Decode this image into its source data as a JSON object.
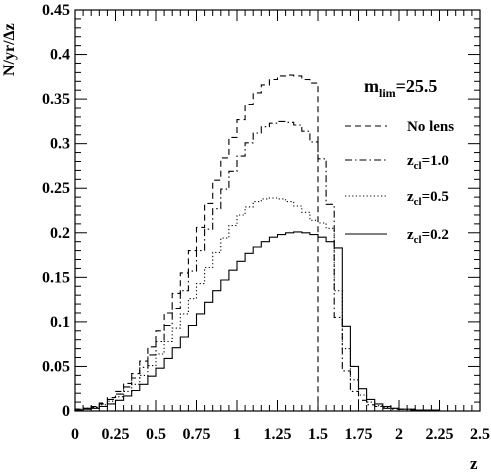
{
  "chart_data": {
    "type": "line",
    "title": "",
    "xlabel": "z",
    "ylabel": "N/yr/Δz",
    "xlim": [
      0,
      2.5
    ],
    "ylim": [
      0,
      0.45
    ],
    "xticks": [
      "0",
      "0.25",
      "0.5",
      "0.75",
      "1",
      "1.25",
      "1.5",
      "1.75",
      "2",
      "2.25",
      "2.5"
    ],
    "yticks": [
      "0",
      "0.05",
      "0.1",
      "0.15",
      "0.2",
      "0.25",
      "0.3",
      "0.35",
      "0.4",
      "0.45"
    ],
    "grid": false,
    "legend_title_main": "m",
    "legend_title_sub": "lim",
    "legend_title_value": "=25.5",
    "legend_position": "right",
    "bin_width": 0.05,
    "x": [
      0.025,
      0.075,
      0.125,
      0.175,
      0.225,
      0.275,
      0.325,
      0.375,
      0.425,
      0.475,
      0.525,
      0.575,
      0.625,
      0.675,
      0.725,
      0.775,
      0.825,
      0.875,
      0.925,
      0.975,
      1.025,
      1.075,
      1.125,
      1.175,
      1.225,
      1.275,
      1.325,
      1.375,
      1.425,
      1.475,
      1.525,
      1.575,
      1.625,
      1.675,
      1.725,
      1.775,
      1.825,
      1.875,
      1.925,
      1.975,
      2.025,
      2.075,
      2.125,
      2.175,
      2.225,
      2.275,
      2.325,
      2.375,
      2.425,
      2.475
    ],
    "series": [
      {
        "name": "No lens",
        "sub": "",
        "dash": "dashed",
        "values": [
          0.002,
          0.003,
          0.005,
          0.009,
          0.015,
          0.022,
          0.031,
          0.042,
          0.056,
          0.072,
          0.09,
          0.11,
          0.132,
          0.155,
          0.18,
          0.206,
          0.233,
          0.259,
          0.284,
          0.307,
          0.327,
          0.344,
          0.357,
          0.366,
          0.372,
          0.376,
          0.377,
          0.376,
          0.372,
          0.368,
          0,
          0,
          0,
          0,
          0,
          0,
          0,
          0,
          0,
          0,
          0,
          0,
          0,
          0,
          0,
          0,
          0,
          0,
          0,
          0
        ]
      },
      {
        "name": "z",
        "sub": "cl",
        "suffix": "=1.0",
        "dash": "dashdot",
        "values": [
          0.002,
          0.003,
          0.004,
          0.008,
          0.013,
          0.019,
          0.027,
          0.037,
          0.049,
          0.063,
          0.078,
          0.096,
          0.115,
          0.135,
          0.157,
          0.18,
          0.204,
          0.227,
          0.249,
          0.269,
          0.286,
          0.301,
          0.312,
          0.319,
          0.323,
          0.325,
          0.324,
          0.321,
          0.314,
          0.302,
          0.283,
          0.232,
          0.105,
          0.045,
          0.022,
          0.012,
          0.007,
          0.005,
          0.003,
          0.002,
          0.002,
          0.001,
          0.001,
          0.001,
          0.001,
          0,
          0,
          0,
          0,
          0
        ]
      },
      {
        "name": "z",
        "sub": "cl",
        "suffix": "=0.5",
        "dash": "dotted",
        "values": [
          0.002,
          0.003,
          0.004,
          0.007,
          0.011,
          0.016,
          0.022,
          0.03,
          0.04,
          0.051,
          0.064,
          0.078,
          0.093,
          0.109,
          0.126,
          0.143,
          0.161,
          0.178,
          0.194,
          0.208,
          0.22,
          0.229,
          0.235,
          0.238,
          0.239,
          0.238,
          0.235,
          0.23,
          0.223,
          0.214,
          0.211,
          0.205,
          0.135,
          0.07,
          0.035,
          0.018,
          0.01,
          0.006,
          0.004,
          0.003,
          0.002,
          0.002,
          0.001,
          0.001,
          0.001,
          0,
          0,
          0,
          0,
          0
        ]
      },
      {
        "name": "z",
        "sub": "cl",
        "suffix": "=0.2",
        "dash": "solid",
        "values": [
          0.001,
          0.002,
          0.003,
          0.005,
          0.008,
          0.012,
          0.017,
          0.023,
          0.03,
          0.039,
          0.048,
          0.059,
          0.071,
          0.083,
          0.096,
          0.109,
          0.122,
          0.135,
          0.147,
          0.158,
          0.168,
          0.177,
          0.184,
          0.19,
          0.195,
          0.198,
          0.2,
          0.201,
          0.2,
          0.198,
          0.195,
          0.19,
          0.183,
          0.095,
          0.05,
          0.025,
          0.013,
          0.008,
          0.005,
          0.003,
          0.002,
          0.002,
          0.001,
          0.001,
          0.001,
          0,
          0,
          0,
          0,
          0
        ]
      }
    ]
  }
}
